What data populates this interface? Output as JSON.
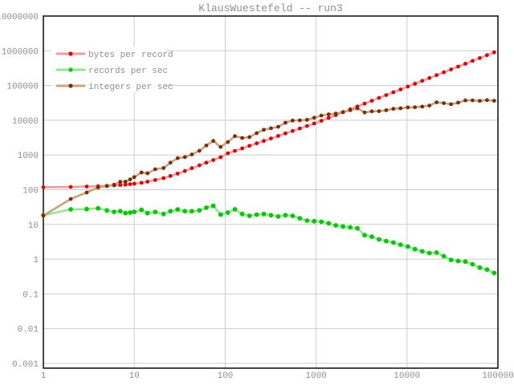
{
  "title": "KlausWuestefeld -- run3",
  "colors": {
    "background": "#ffffff",
    "text": "#8f8f8f",
    "grid": "#cccccc",
    "border": "#1a1a1a"
  },
  "legend": {
    "items": [
      {
        "label": "bytes per record",
        "dot_color": "#e60000",
        "line_color": "#f49a9a"
      },
      {
        "label": "records per sec",
        "dot_color": "#00cc00",
        "line_color": "#90e890"
      },
      {
        "label": "integers per sec",
        "dot_color": "#7d2e08",
        "line_color": "#d0a078"
      }
    ]
  },
  "chart_data": {
    "type": "line",
    "title": "KlausWuestefeld -- run3",
    "x_scale": "log",
    "y_scale": "log",
    "x_range": [
      1,
      100000
    ],
    "y_range": [
      0.001,
      10000000
    ],
    "grid": true,
    "legend_position": "top-left",
    "x_tick_labels": [
      "1",
      "10",
      "100",
      "1000",
      "10000",
      "100000"
    ],
    "x_tick_exponents": [
      0,
      1,
      2,
      3,
      4,
      5
    ],
    "y_tick_labels": [
      "10000000",
      "1000000",
      "100000",
      "10000",
      "1000",
      "100",
      "10",
      "1",
      "0.1",
      "0.01",
      "0.001"
    ],
    "y_tick_exponents": [
      7,
      6,
      5,
      4,
      3,
      2,
      1,
      0,
      -1,
      -2,
      -3
    ],
    "x": [
      1,
      2,
      3,
      4,
      5,
      6,
      7,
      8,
      9,
      10,
      12,
      14,
      17,
      21,
      25,
      30,
      36,
      43,
      52,
      62,
      74,
      89,
      107,
      128,
      154,
      185,
      222,
      266,
      319,
      383,
      460,
      552,
      662,
      794,
      953,
      1144,
      1373,
      1647,
      1977,
      2372,
      2846,
      3416,
      4099,
      4919,
      5903,
      7083,
      8500,
      10200,
      12240,
      14688,
      17626,
      21151,
      25381,
      30457,
      36549,
      43858,
      52630,
      63156,
      75787,
      90945
    ],
    "series": [
      {
        "name": "bytes per record",
        "dot_color": "#e60000",
        "line_color": "#f49a9a",
        "dot_radius": 2.4,
        "values": [
          118,
          120,
          123,
          126,
          129,
          133,
          136,
          140,
          144,
          149,
          158,
          170,
          190,
          215,
          248,
          290,
          345,
          415,
          500,
          600,
          715,
          860,
          1120,
          1310,
          1550,
          1830,
          2160,
          2540,
          2990,
          3530,
          4170,
          4910,
          5790,
          6820,
          8040,
          9660,
          11670,
          14090,
          17020,
          20560,
          24840,
          30010,
          36240,
          43770,
          52890,
          63890,
          77180,
          93230,
          112600,
          136000,
          164300,
          198500,
          239800,
          289600,
          349900,
          422600,
          510500,
          616700,
          745100,
          899600
        ]
      },
      {
        "name": "records per sec",
        "dot_color": "#00cc00",
        "line_color": "#90e890",
        "dot_radius": 2.9,
        "values": [
          18.4,
          27.2,
          27.6,
          29.1,
          25.3,
          23.1,
          24,
          21.2,
          22,
          23.1,
          26.2,
          21.2,
          22.8,
          20,
          24,
          26.9,
          24,
          24,
          25.3,
          30.2,
          34.2,
          19.1,
          22,
          27.2,
          20,
          17.7,
          19.1,
          20,
          18.4,
          16.9,
          18.4,
          17.7,
          15,
          12.9,
          12.4,
          11.9,
          10.8,
          9.4,
          8.7,
          8.2,
          7.7,
          4.9,
          4.4,
          3.7,
          3.3,
          3,
          2.6,
          2.3,
          1.93,
          1.68,
          1.5,
          1.55,
          1.22,
          0.95,
          0.88,
          0.85,
          0.71,
          0.57,
          0.5,
          0.4
        ]
      },
      {
        "name": "integers per sec",
        "dot_color": "#7d2e08",
        "line_color": "#d0a078",
        "dot_radius": 2.4,
        "values": [
          18,
          54,
          83,
          116,
          127,
          139,
          168,
          170,
          198,
          231,
          314,
          297,
          388,
          420,
          600,
          807,
          864,
          1032,
          1316,
          1872,
          2531,
          1700,
          2354,
          3482,
          3080,
          3275,
          4240,
          5320,
          5870,
          6473,
          8464,
          9770,
          9930,
          10243,
          11817,
          13614,
          14828,
          15482,
          17200,
          19450,
          21914,
          16738,
          18036,
          18200,
          19480,
          21249,
          22100,
          23460,
          23623,
          24676,
          26439,
          32784,
          30965,
          28934,
          32163,
          37279,
          37367,
          35999,
          37894,
          36378
        ]
      }
    ]
  }
}
